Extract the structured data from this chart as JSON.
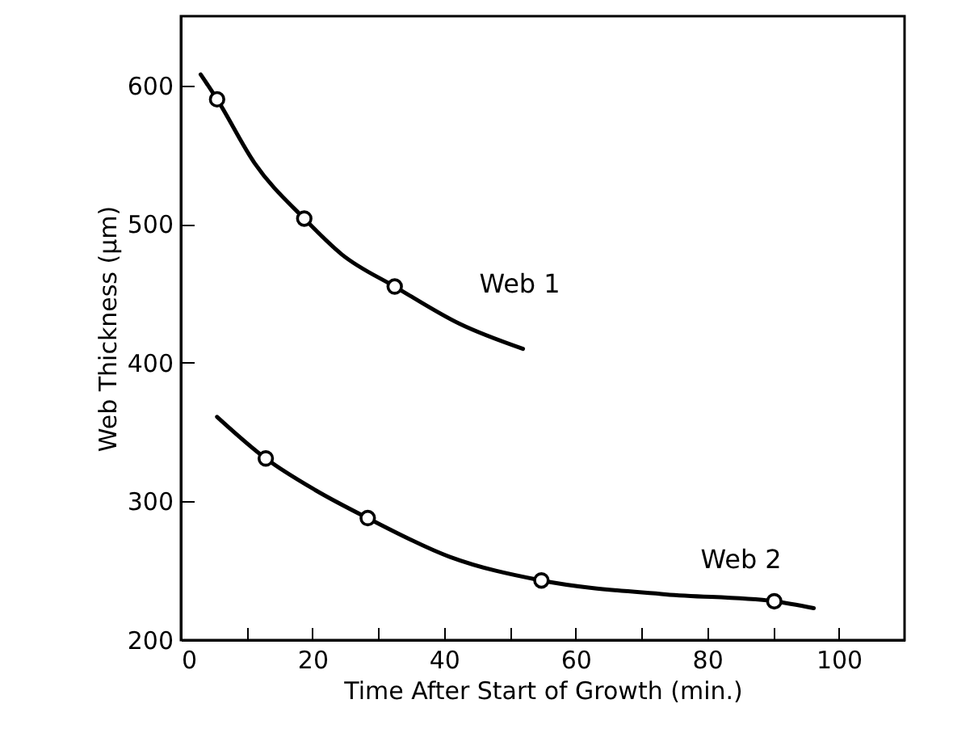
{
  "chart_data": {
    "type": "line",
    "xlabel": "Time After Start of Growth (min.)",
    "ylabel": "Web Thickness (μm)",
    "xlim": [
      0,
      110
    ],
    "xticks": [
      0,
      {
        "value": 10,
        "label": null
      },
      20,
      {
        "value": 30,
        "label": null
      },
      40,
      {
        "value": 50,
        "label": null
      },
      60,
      {
        "value": 70,
        "label": null
      },
      80,
      {
        "value": 90,
        "label": null
      },
      100
    ],
    "ylim": [
      200,
      650
    ],
    "yticks": [
      200,
      300,
      400,
      500,
      600
    ],
    "series": [
      {
        "name": "Web 1",
        "marker": "none",
        "color": "#000000",
        "x": [
          3,
          5.5,
          11.2,
          18.75,
          24.5,
          32.5,
          42.4,
          52
        ],
        "values": [
          608,
          590,
          544,
          504,
          478,
          455,
          428,
          410
        ]
      },
      {
        "name": "Web 2",
        "marker": "none",
        "color": "#000000",
        "x": [
          5.5,
          12.9,
          20.5,
          28.4,
          40.9,
          54.8,
          73.7,
          90.2,
          96.2
        ],
        "values": [
          361,
          331,
          308,
          288,
          260,
          243,
          233,
          228,
          223
        ]
      },
      {
        "type": "scatter",
        "marker": "circle",
        "color": "#000000",
        "x": [
          5.5,
          18.75,
          32.5
        ],
        "values": [
          590,
          504,
          455
        ]
      },
      {
        "type": "scatter",
        "marker": "circle",
        "color": "#000000",
        "x": [
          12.9,
          28.4,
          54.8,
          90.2
        ],
        "values": [
          331,
          288,
          243,
          228
        ]
      }
    ]
  }
}
